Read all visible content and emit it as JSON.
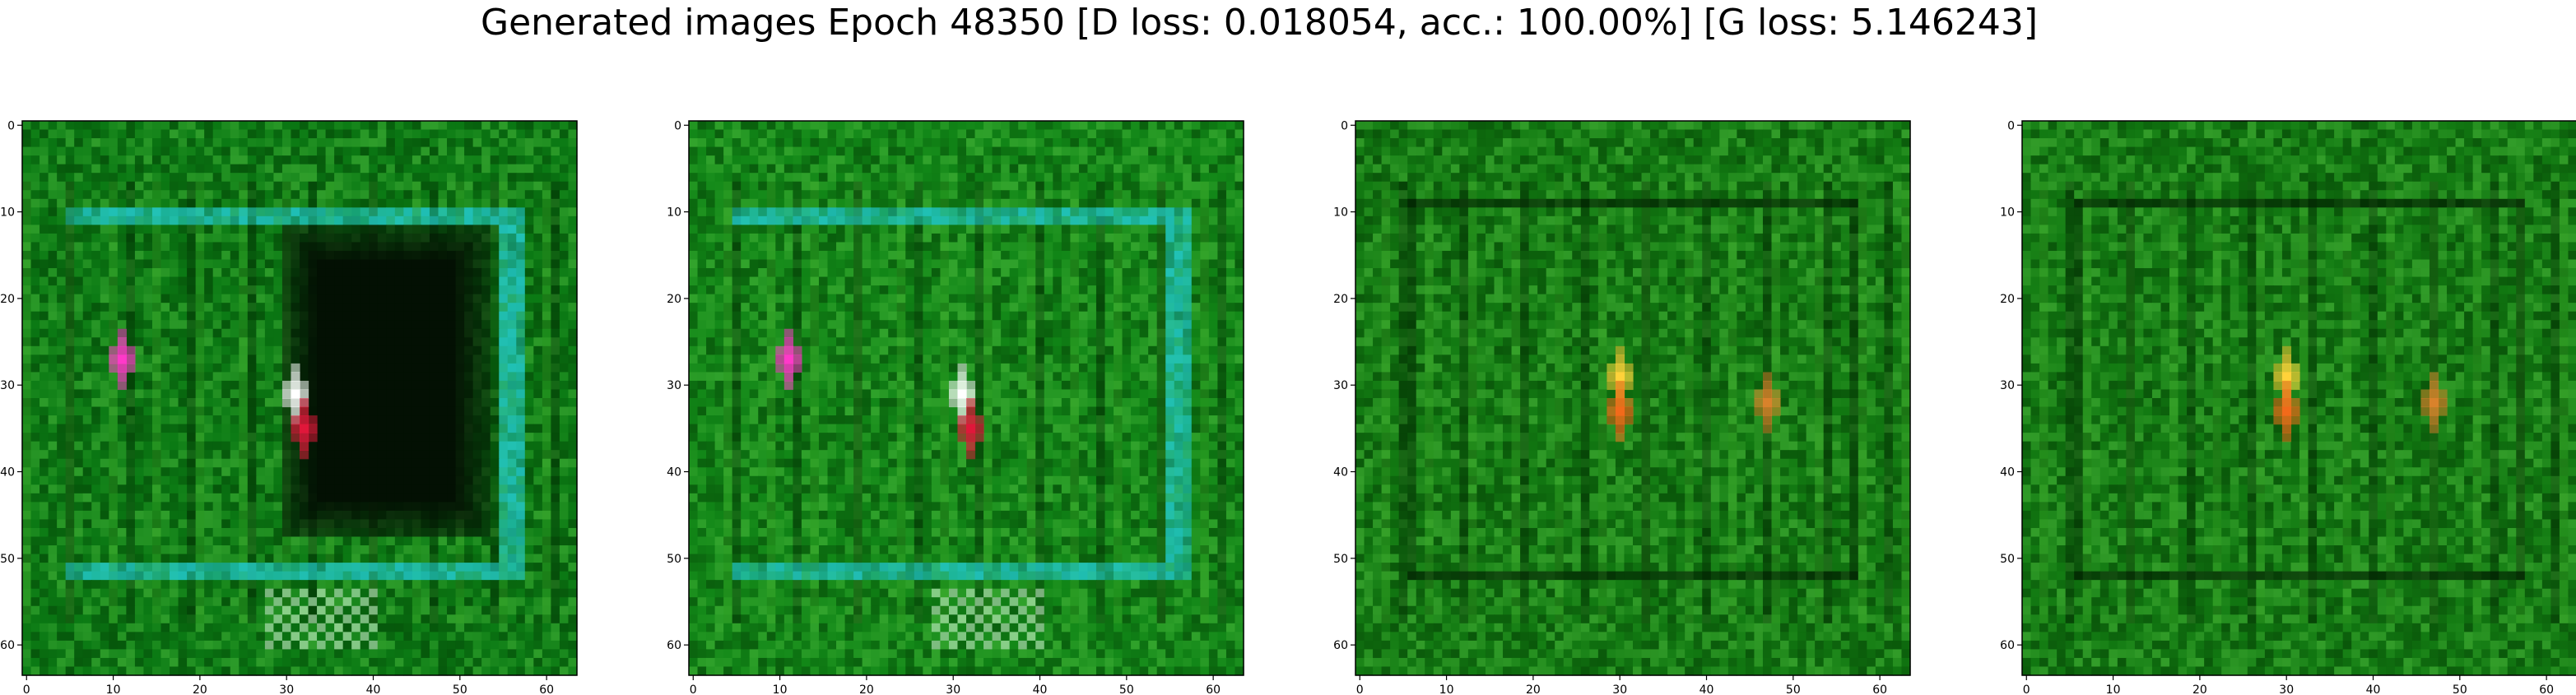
{
  "figure": {
    "suptitle": "Generated images Epoch 48350 [D loss: 0.018054, acc.: 100.00%] [G loss: 5.146243]"
  },
  "chart_data": [
    {
      "type": "heatmap",
      "x_ticks": [
        "0",
        "10",
        "20",
        "30",
        "40",
        "50",
        "60"
      ],
      "y_ticks": [
        "0",
        "10",
        "20",
        "30",
        "40",
        "50",
        "60"
      ],
      "xlim": [
        -0.5,
        63.5
      ],
      "ylim": [
        63.5,
        -0.5
      ],
      "grid": false,
      "legend": "none",
      "base_color": "#0b7a14",
      "frame_color": "#21c6c6",
      "dark_region_color": "#031003",
      "bright_spots": [
        {
          "x": 11,
          "y": 27,
          "color": "#ff39c9"
        },
        {
          "x": 31,
          "y": 31,
          "color": "#ffffff"
        },
        {
          "x": 32,
          "y": 35,
          "color": "#e0173a"
        }
      ]
    },
    {
      "type": "heatmap",
      "x_ticks": [
        "0",
        "10",
        "20",
        "30",
        "40",
        "50",
        "60"
      ],
      "y_ticks": [
        "0",
        "10",
        "20",
        "30",
        "40",
        "50",
        "60"
      ],
      "xlim": [
        -0.5,
        63.5
      ],
      "ylim": [
        63.5,
        -0.5
      ],
      "grid": false,
      "legend": "none",
      "base_color": "#118617",
      "frame_color": "#21c6c6",
      "bright_spots": [
        {
          "x": 11,
          "y": 27,
          "color": "#ff39c9"
        },
        {
          "x": 31,
          "y": 31,
          "color": "#ffffff"
        },
        {
          "x": 32,
          "y": 35,
          "color": "#e0173a"
        }
      ]
    },
    {
      "type": "heatmap",
      "x_ticks": [
        "0",
        "10",
        "20",
        "30",
        "40",
        "50",
        "60"
      ],
      "y_ticks": [
        "0",
        "10",
        "20",
        "30",
        "40",
        "50",
        "60"
      ],
      "xlim": [
        -0.5,
        63.5
      ],
      "ylim": [
        63.5,
        -0.5
      ],
      "grid": false,
      "legend": "none",
      "base_color": "#127a12",
      "bright_spots": [
        {
          "x": 30,
          "y": 29,
          "color": "#ffd23a"
        },
        {
          "x": 30,
          "y": 33,
          "color": "#f26a1a"
        },
        {
          "x": 47,
          "y": 32,
          "color": "#d9822b"
        }
      ]
    },
    {
      "type": "heatmap",
      "x_ticks": [
        "0",
        "10",
        "20",
        "30",
        "40",
        "50",
        "60"
      ],
      "y_ticks": [
        "0",
        "10",
        "20",
        "30",
        "40",
        "50",
        "60"
      ],
      "xlim": [
        -0.5,
        63.5
      ],
      "ylim": [
        63.5,
        -0.5
      ],
      "grid": false,
      "legend": "none",
      "base_color": "#127a12",
      "bright_spots": [
        {
          "x": 30,
          "y": 29,
          "color": "#ffd23a"
        },
        {
          "x": 30,
          "y": 33,
          "color": "#f26a1a"
        },
        {
          "x": 47,
          "y": 32,
          "color": "#d9822b"
        }
      ]
    }
  ]
}
